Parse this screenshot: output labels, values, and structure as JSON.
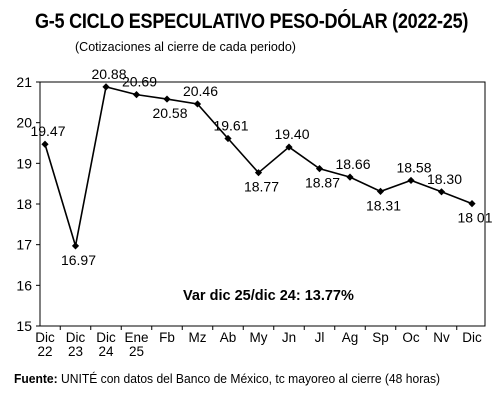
{
  "header": {
    "title": "G-5 CICLO ESPECULATIVO PESO-DÓLAR (2022-25)",
    "subtitle": "(Cotizaciones al cierre de cada periodo)"
  },
  "footer": {
    "source_label": "Fuente:",
    "source_text": " UNITÉ con datos del Banco de México, tc mayoreo al cierre (48 horas)"
  },
  "chart_data": {
    "type": "line",
    "title": "G-5 CICLO ESPECULATIVO PESO-DÓLAR (2022-25)",
    "subtitle": "(Cotizaciones al cierre de cada periodo)",
    "categories": [
      [
        "Dic",
        "22"
      ],
      [
        "Dic",
        "23"
      ],
      [
        "Dic",
        "24"
      ],
      [
        "Ene",
        "25"
      ],
      [
        "Fb"
      ],
      [
        "Mz"
      ],
      [
        "Ab"
      ],
      [
        "My"
      ],
      [
        "Jn"
      ],
      [
        "Jl"
      ],
      [
        "Ag"
      ],
      [
        "Sp"
      ],
      [
        "Oc"
      ],
      [
        "Nv"
      ],
      [
        "Dic"
      ]
    ],
    "values": [
      19.47,
      16.97,
      20.88,
      20.69,
      20.58,
      20.46,
      19.61,
      18.77,
      19.4,
      18.87,
      18.66,
      18.31,
      18.58,
      18.3,
      18.01
    ],
    "labels": [
      "19.47",
      "16.97",
      "20.88",
      "20.69",
      "20.58",
      "20.46",
      "19.61",
      "18.77",
      "19.40",
      "18.87",
      "18.66",
      "18.31",
      "18.58",
      "18.30",
      "18 01"
    ],
    "label_pos": [
      "above",
      "below",
      "above",
      "above",
      "below",
      "above",
      "above",
      "below",
      "above",
      "below",
      "above",
      "below",
      "above",
      "above",
      "below"
    ],
    "ylim": [
      15,
      21
    ],
    "yticks": [
      15,
      16,
      17,
      18,
      19,
      20,
      21
    ],
    "grid": false,
    "annotation": "Var dic 25/dic 24: 13.77%",
    "line_color": "#000000"
  }
}
